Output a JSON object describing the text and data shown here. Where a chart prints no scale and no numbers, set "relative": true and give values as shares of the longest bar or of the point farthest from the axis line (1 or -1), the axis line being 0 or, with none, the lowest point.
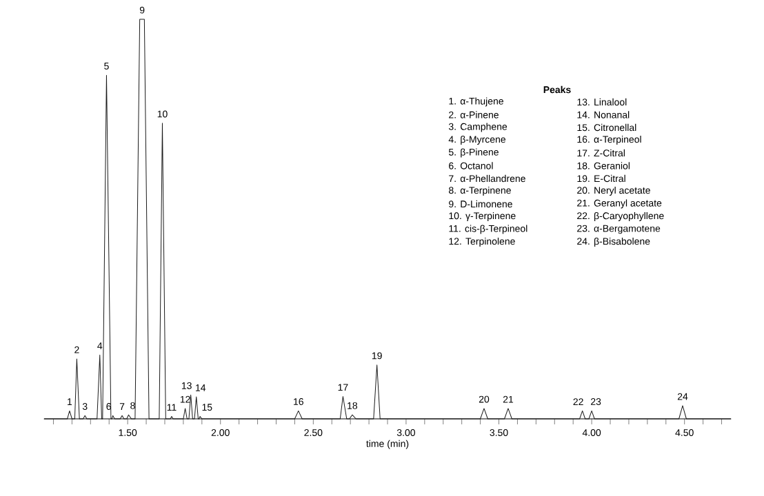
{
  "chart_data": {
    "type": "line",
    "relative": true,
    "xlabel": "time (min)",
    "color": "#1a1a1a",
    "xlim": [
      1.05,
      4.75
    ],
    "xticks": [
      {
        "value": 1.1,
        "label": null
      },
      {
        "value": 1.2,
        "label": null
      },
      {
        "value": 1.3,
        "label": null
      },
      {
        "value": 1.4,
        "label": null
      },
      {
        "value": 1.5,
        "label": "1.50"
      },
      {
        "value": 1.6,
        "label": null
      },
      {
        "value": 1.7,
        "label": null
      },
      {
        "value": 1.8,
        "label": null
      },
      {
        "value": 1.9,
        "label": null
      },
      {
        "value": 2.0,
        "label": "2.00"
      },
      {
        "value": 2.1,
        "label": null
      },
      {
        "value": 2.2,
        "label": null
      },
      {
        "value": 2.3,
        "label": null
      },
      {
        "value": 2.4,
        "label": null
      },
      {
        "value": 2.5,
        "label": "2.50"
      },
      {
        "value": 2.6,
        "label": null
      },
      {
        "value": 2.7,
        "label": null
      },
      {
        "value": 2.8,
        "label": null
      },
      {
        "value": 2.9,
        "label": null
      },
      {
        "value": 3.0,
        "label": "3.00"
      },
      {
        "value": 3.1,
        "label": null
      },
      {
        "value": 3.2,
        "label": null
      },
      {
        "value": 3.3,
        "label": null
      },
      {
        "value": 3.4,
        "label": null
      },
      {
        "value": 3.5,
        "label": "3.50"
      },
      {
        "value": 3.6,
        "label": null
      },
      {
        "value": 3.7,
        "label": null
      },
      {
        "value": 3.8,
        "label": null
      },
      {
        "value": 3.9,
        "label": null
      },
      {
        "value": 4.0,
        "label": "4.00"
      },
      {
        "value": 4.1,
        "label": null
      },
      {
        "value": 4.2,
        "label": null
      },
      {
        "value": 4.3,
        "label": null
      },
      {
        "value": 4.4,
        "label": null
      },
      {
        "value": 4.5,
        "label": "4.50"
      },
      {
        "value": 4.6,
        "label": null
      },
      {
        "value": 4.7,
        "label": null
      }
    ],
    "x": [
      1.05,
      1.175,
      1.187,
      1.2,
      1.215,
      1.226,
      1.24,
      1.26,
      1.27,
      1.28,
      1.335,
      1.35,
      1.36,
      1.365,
      1.386,
      1.41,
      1.415,
      1.42,
      1.43,
      1.46,
      1.47,
      1.48,
      1.495,
      1.505,
      1.52,
      1.54,
      1.565,
      1.59,
      1.615,
      1.67,
      1.687,
      1.705,
      1.73,
      1.737,
      1.745,
      1.8,
      1.81,
      1.82,
      1.83,
      1.84,
      1.85,
      1.86,
      1.87,
      1.88,
      1.885,
      1.89,
      1.9,
      2.4,
      2.42,
      2.44,
      2.645,
      2.66,
      2.68,
      2.695,
      2.71,
      2.73,
      2.825,
      2.843,
      2.86,
      3.4,
      3.42,
      3.44,
      3.53,
      3.55,
      3.57,
      3.935,
      3.95,
      3.965,
      3.985,
      4.0,
      4.015,
      4.47,
      4.49,
      4.51,
      4.75
    ],
    "values": [
      0,
      0,
      0.02,
      0,
      0,
      0.15,
      0,
      0,
      0.008,
      0,
      0,
      0.16,
      0,
      0,
      0.86,
      0,
      0,
      0.008,
      0,
      0,
      0.008,
      0,
      0,
      0.01,
      0,
      0,
      1,
      1,
      0,
      0,
      0.74,
      0,
      0,
      0.006,
      0,
      0,
      0.026,
      0,
      0,
      0.06,
      0,
      0,
      0.055,
      0,
      0,
      0.006,
      0,
      0,
      0.02,
      0,
      0,
      0.056,
      0,
      0,
      0.01,
      0,
      0,
      0.135,
      0,
      0,
      0.026,
      0,
      0,
      0.026,
      0,
      0,
      0.02,
      0,
      0,
      0.02,
      0,
      0,
      0.033,
      0,
      0
    ],
    "annotations": [
      {
        "text": "1",
        "x": 1.187,
        "y": 0.02
      },
      {
        "text": "2",
        "x": 1.226,
        "y": 0.15
      },
      {
        "text": "3",
        "x": 1.27,
        "y": 0.008
      },
      {
        "text": "4",
        "x": 1.35,
        "y": 0.16
      },
      {
        "text": "5",
        "x": 1.386,
        "y": 0.86
      },
      {
        "text": "6",
        "x": 1.42,
        "y": 0.008
      },
      {
        "text": "7",
        "x": 1.47,
        "y": 0.008
      },
      {
        "text": "8",
        "x": 1.505,
        "y": 0.01
      },
      {
        "text": "9",
        "x": 1.578,
        "y": 1
      },
      {
        "text": "10",
        "x": 1.687,
        "y": 0.74
      },
      {
        "text": "11",
        "x": 1.737,
        "y": 0.006
      },
      {
        "text": "12",
        "x": 1.81,
        "y": 0.026
      },
      {
        "text": "13",
        "x": 1.84,
        "y": 0.06
      },
      {
        "text": "14",
        "x": 1.87,
        "y": 0.055
      },
      {
        "text": "15",
        "x": 1.89,
        "y": 0.006
      },
      {
        "text": "16",
        "x": 2.42,
        "y": 0.02
      },
      {
        "text": "17",
        "x": 2.66,
        "y": 0.056
      },
      {
        "text": "18",
        "x": 2.71,
        "y": 0.01
      },
      {
        "text": "19",
        "x": 2.843,
        "y": 0.135
      },
      {
        "text": "20",
        "x": 3.42,
        "y": 0.026
      },
      {
        "text": "21",
        "x": 3.55,
        "y": 0.026
      },
      {
        "text": "22",
        "x": 3.95,
        "y": 0.02
      },
      {
        "text": "23",
        "x": 4.0,
        "y": 0.02
      },
      {
        "text": "24",
        "x": 4.49,
        "y": 0.033
      },
      "Peaks",
      "1. α-Thujene",
      "2. α-Pinene",
      "3. Camphene",
      "4. β-Myrcene",
      "5. β-Pinene",
      "6. Octanol",
      "7. α-Phellandrene",
      "8. α-Terpinene",
      "9. D-Limonene",
      "10. γ-Terpinene",
      "11. cis-β-Terpineol",
      "12. Terpinolene",
      "13. Linalool",
      "14. Nonanal",
      "15. Citronellal",
      "16. α-Terpineol",
      "17. Z-Citral",
      "18. Geraniol",
      "19. E-Citral",
      "20. Neryl acetate",
      "21. Geranyl acetate",
      "22. β-Caryophyllene",
      "23. α-Bergamotene",
      "24. β-Bisabolene"
    ]
  }
}
